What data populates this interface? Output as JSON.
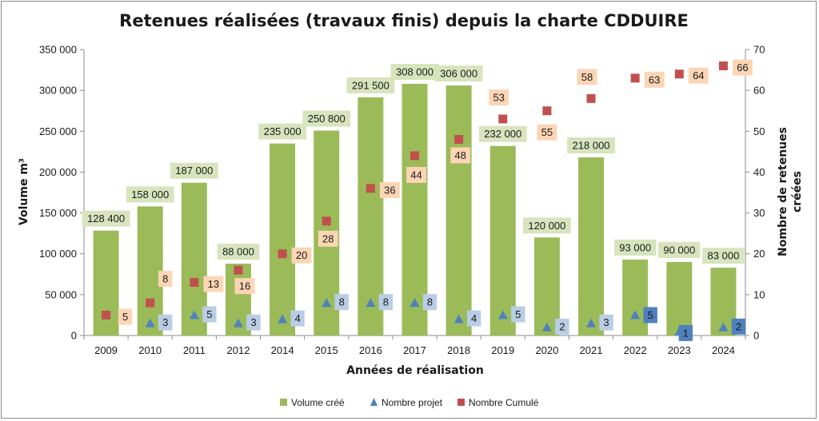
{
  "chart_data": {
    "type": "bar",
    "title": "Retenues réalisées (travaux finis) depuis la charte CDDUIRE",
    "xlabel": "Années de réalisation",
    "ylabel": "Volume m³",
    "y2label_line1": "Nombre de retenues",
    "y2label_line2": "créées",
    "categories": [
      "2009",
      "2010",
      "2011",
      "2012",
      "2014",
      "2015",
      "2016",
      "2017",
      "2018",
      "2019",
      "2020",
      "2021",
      "2022",
      "2023",
      "2024"
    ],
    "ylim": [
      0,
      350000
    ],
    "y_ticks": [
      "0",
      "50 000",
      "100 000",
      "150 000",
      "200 000",
      "250 000",
      "300 000",
      "350 000"
    ],
    "y2lim": [
      0,
      70
    ],
    "y2_ticks": [
      "0",
      "10",
      "20",
      "30",
      "40",
      "50",
      "60",
      "70"
    ],
    "series": [
      {
        "name": "Volume créé",
        "kind": "bar",
        "axis": "left",
        "color": "#9bbb59",
        "values": [
          128400,
          158000,
          187000,
          88000,
          235000,
          250800,
          291500,
          308000,
          306000,
          232000,
          120000,
          218000,
          93000,
          90000,
          83000
        ],
        "labels": [
          "128 400",
          "158 000",
          "187 000",
          "88 000",
          "235 000",
          "250 800",
          "291 500",
          "308 000",
          "306 000",
          "232 000",
          "120 000",
          "218 000",
          "93 000",
          "90 000",
          "83 000"
        ]
      },
      {
        "name": "Nombre projet",
        "kind": "triangle",
        "axis": "right",
        "color": "#4f81bd",
        "values": [
          null,
          3,
          5,
          3,
          4,
          8,
          8,
          8,
          4,
          5,
          2,
          3,
          5,
          1,
          2
        ]
      },
      {
        "name": "Nombre Cumulé",
        "kind": "square",
        "axis": "right",
        "color": "#c0504d",
        "values": [
          5,
          8,
          13,
          16,
          20,
          28,
          36,
          44,
          48,
          53,
          55,
          58,
          63,
          64,
          66
        ]
      }
    ],
    "label_colors": {
      "bar_label_bg": "#d7e4bd",
      "cumul_label_bg": "#fcd5b4",
      "projet_label_bg": "#b9cde5",
      "projet_label_dark_bg": "#4f81bd"
    },
    "legend_position": "bottom",
    "grid": false
  }
}
